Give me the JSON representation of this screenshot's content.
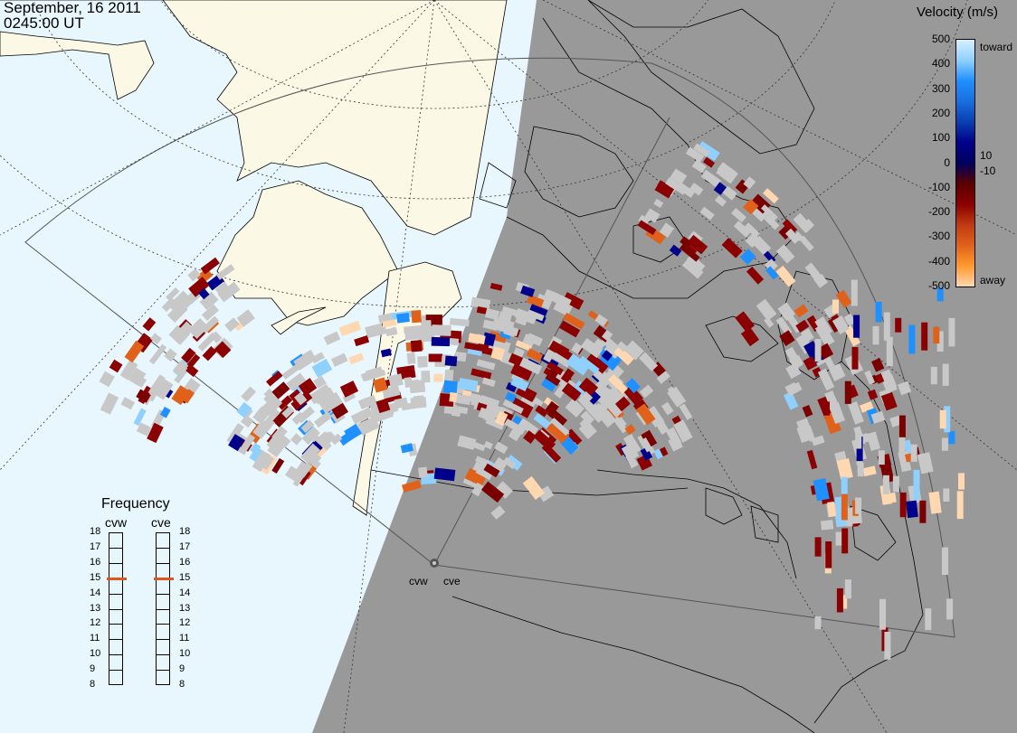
{
  "header": {
    "date": "September, 16 2011",
    "time": "0245:00 UT"
  },
  "velocity_scale": {
    "title": "Velocity (m/s)",
    "ticks": [
      "500",
      "400",
      "300",
      "200",
      "100",
      "0",
      "-100",
      "-200",
      "-300",
      "-400",
      "-500"
    ],
    "extra_ticks": [
      "10",
      "-10"
    ],
    "label_toward": "toward",
    "label_away": "away",
    "colors": [
      "#ffd7b0",
      "#ff9a2e",
      "#e0621a",
      "#c03a12",
      "#8b0000",
      "#5a0000",
      "#000060",
      "#00008b",
      "#0a3fb0",
      "#1a6ede",
      "#1e90ff",
      "#8fd0ff",
      "#d6efff"
    ]
  },
  "frequency": {
    "title": "Frequency",
    "left_label": "cvw",
    "right_label": "cve",
    "levels": [
      "18",
      "17",
      "16",
      "15",
      "14",
      "13",
      "12",
      "11",
      "10",
      "9",
      "8"
    ],
    "cvw_mhz": 15,
    "cve_mhz": 15,
    "marker_color": "#e0561a"
  },
  "stations": {
    "west": "cvw",
    "east": "cve"
  },
  "map_colors": {
    "ocean_day": "#e8f6fd",
    "land_day": "#fbf8e6",
    "night": "#999999",
    "ground_scatter": "#c8c8c8",
    "coast": "#000000"
  }
}
